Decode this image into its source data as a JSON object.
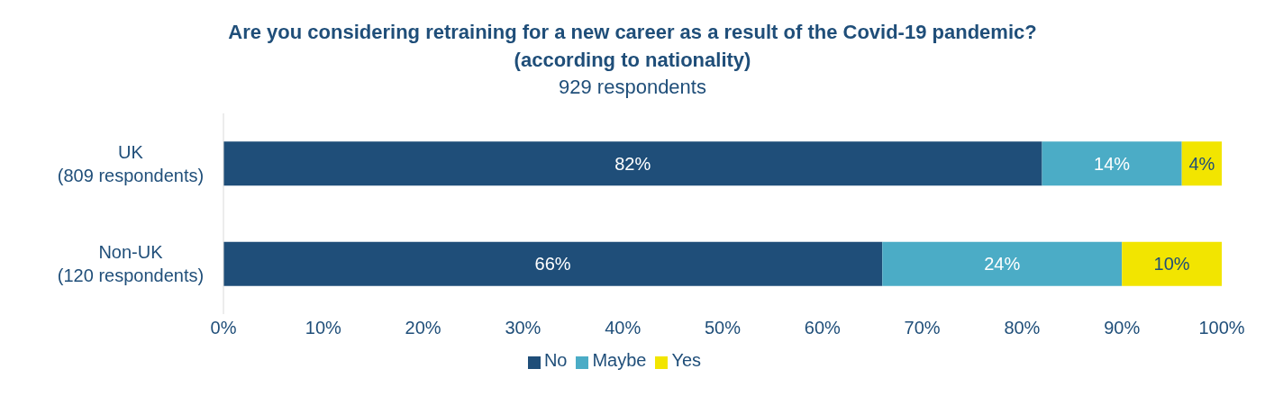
{
  "chart_data": {
    "type": "bar",
    "orientation": "horizontal",
    "stacked": true,
    "title": "Are you considering retraining for a new career as a result of the Covid-19 pandemic? (according to nationality)",
    "subtitle": "929 respondents",
    "categories": [
      "UK\n(809 respondents)",
      "Non-UK\n(120 respondents)"
    ],
    "series": [
      {
        "name": "No",
        "color": "#1f4e79",
        "values": [
          82,
          66
        ],
        "value_labels": [
          "82%",
          "66%"
        ]
      },
      {
        "name": "Maybe",
        "color": "#4bacc6",
        "values": [
          14,
          24
        ],
        "value_labels": [
          "14%",
          "24%"
        ]
      },
      {
        "name": "Yes",
        "color": "#f2e500",
        "values": [
          4,
          10
        ],
        "value_labels": [
          "4%",
          "10%"
        ]
      }
    ],
    "xlim": [
      0,
      100
    ],
    "xticks": [
      {
        "value": 0,
        "label": "0%"
      },
      {
        "value": 10,
        "label": "10%"
      },
      {
        "value": 20,
        "label": "20%"
      },
      {
        "value": 30,
        "label": "30%"
      },
      {
        "value": 40,
        "label": "40%"
      },
      {
        "value": 50,
        "label": "50%"
      },
      {
        "value": 60,
        "label": "60%"
      },
      {
        "value": 70,
        "label": "70%"
      },
      {
        "value": 80,
        "label": "80%"
      },
      {
        "value": 90,
        "label": "90%"
      },
      {
        "value": 100,
        "label": "100%"
      }
    ],
    "legend": "bottom"
  }
}
